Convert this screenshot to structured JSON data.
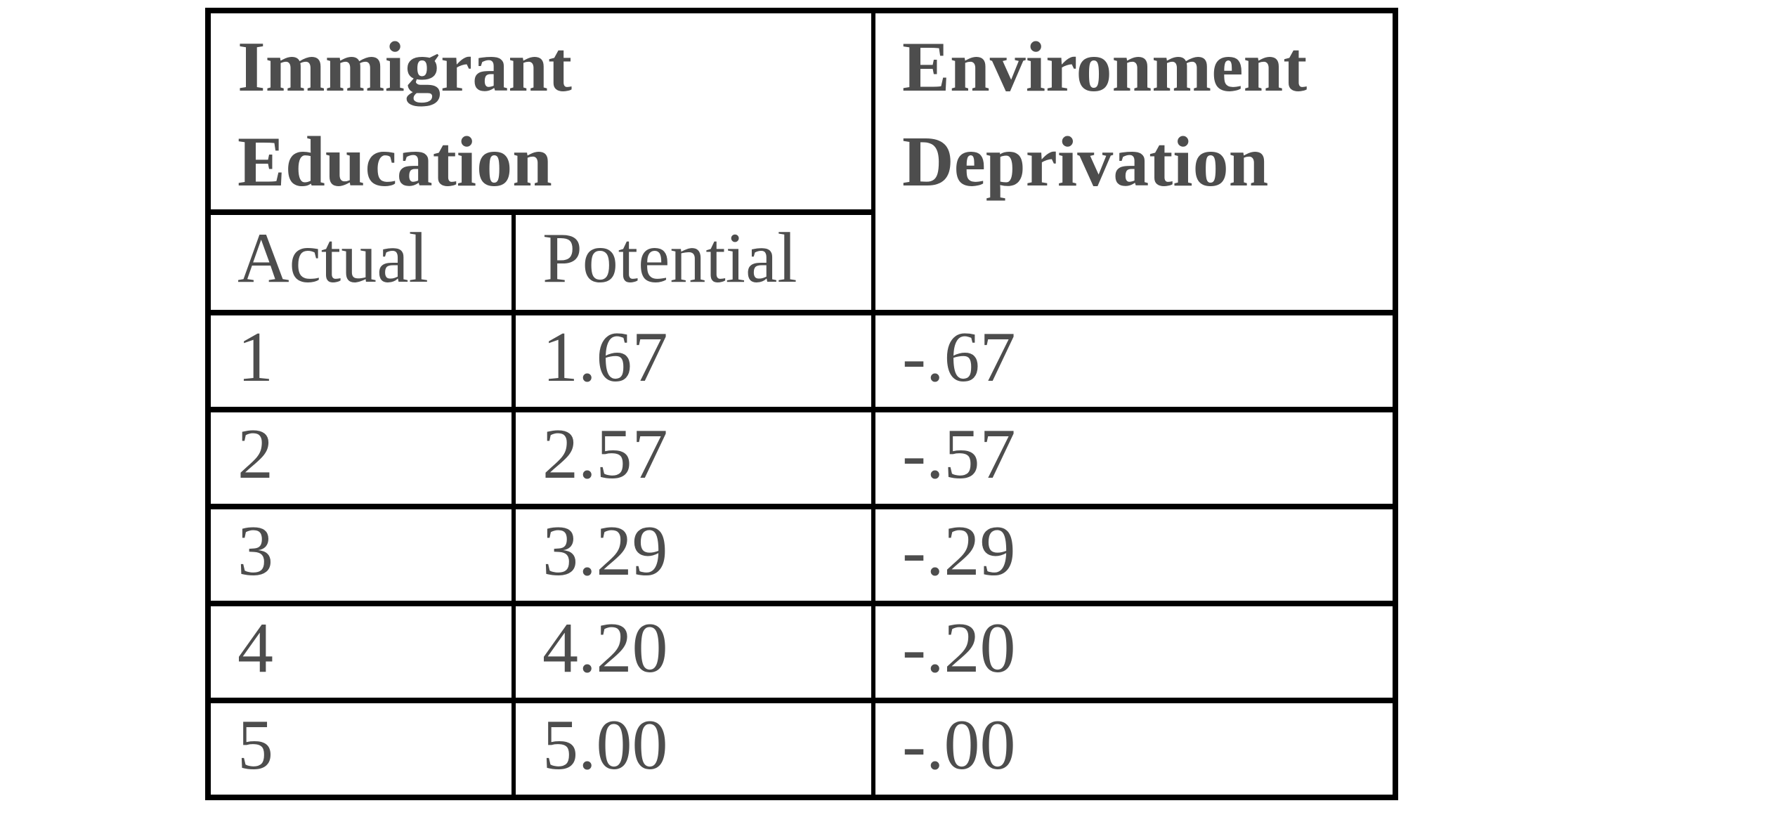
{
  "colors": {
    "background": "#ffffff",
    "border": "#000000",
    "text": "#4d4d4d"
  },
  "table": {
    "header": {
      "immigrant_education": "Immigrant\nEducation",
      "environment_deprivation": "Environment\nDeprivation",
      "actual": "Actual",
      "potential": "Potential"
    },
    "rows": [
      [
        "1",
        "1.67",
        "-.67"
      ],
      [
        "2",
        "2.57",
        "-.57"
      ],
      [
        "3",
        "3.29",
        "-.29"
      ],
      [
        "4",
        "4.20",
        "-.20"
      ],
      [
        "5",
        "5.00",
        "-.00"
      ]
    ]
  },
  "chart_data": {
    "type": "table",
    "columns": [
      "Immigrant Education - Actual",
      "Immigrant Education - Potential",
      "Environment Deprivation"
    ],
    "rows": [
      [
        1,
        1.67,
        -0.67
      ],
      [
        2,
        2.57,
        -0.57
      ],
      [
        3,
        3.29,
        -0.29
      ],
      [
        4,
        4.2,
        -0.2
      ],
      [
        5,
        5.0,
        -0.0
      ]
    ]
  }
}
